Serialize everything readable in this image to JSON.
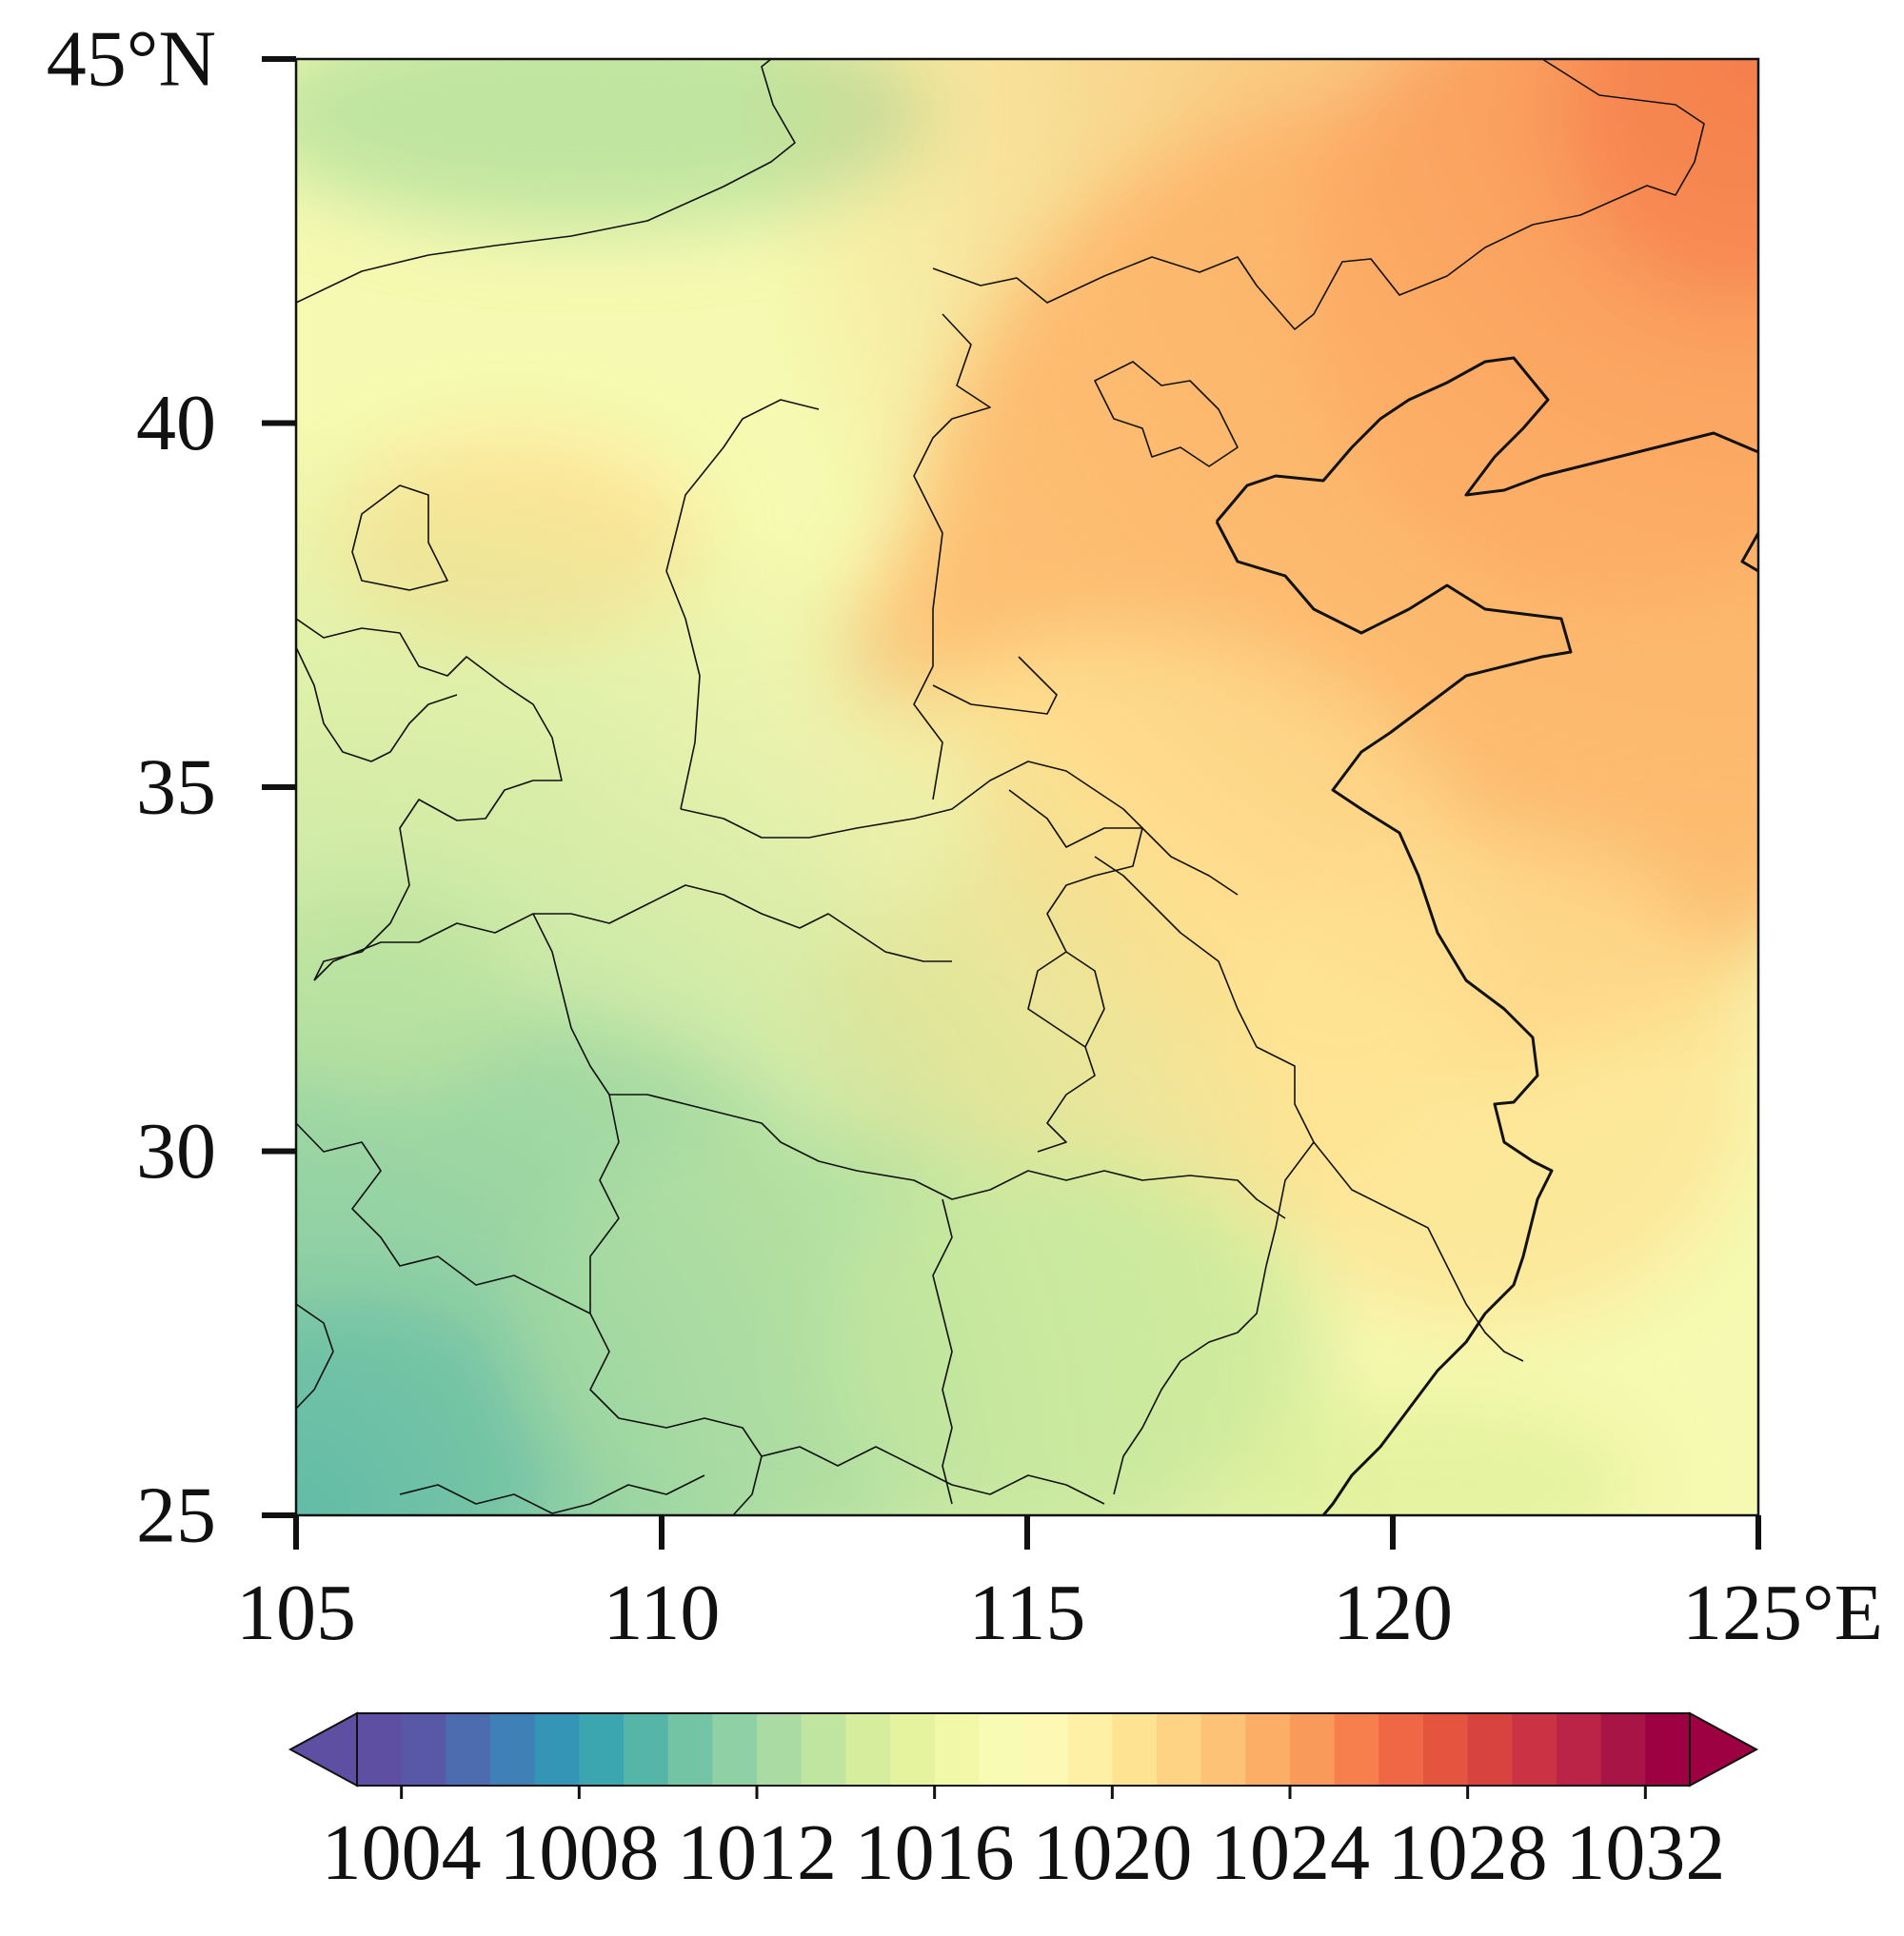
{
  "map": {
    "y_axis": {
      "unit_label": "45°N",
      "ticks": [
        {
          "value": 45,
          "label": "45°N"
        },
        {
          "value": 40,
          "label": "40"
        },
        {
          "value": 35,
          "label": "35"
        },
        {
          "value": 30,
          "label": "30"
        },
        {
          "value": 25,
          "label": "25"
        }
      ]
    },
    "x_axis": {
      "ticks": [
        {
          "value": 105,
          "label": "105"
        },
        {
          "value": 110,
          "label": "110"
        },
        {
          "value": 115,
          "label": "115"
        },
        {
          "value": 120,
          "label": "120"
        },
        {
          "value": 125,
          "label": "125°E"
        }
      ]
    },
    "lon_range": [
      105,
      125
    ],
    "lat_range": [
      25,
      45
    ],
    "field_description_values": {
      "min_shown": 1008,
      "max_shown": 1026
    }
  },
  "colorbar": {
    "ticks": [
      "1004",
      "1008",
      "1012",
      "1016",
      "1020",
      "1024",
      "1028",
      "1032"
    ],
    "min": 1003,
    "max": 1033,
    "step": 1,
    "extend": "both",
    "colors": [
      "#5e4fa2",
      "#5958a8",
      "#4d6cb0",
      "#3f80b7",
      "#3495b7",
      "#3ba5b0",
      "#55b6a8",
      "#73c3a5",
      "#8fd0a4",
      "#a9dba2",
      "#c0e5a0",
      "#d5ed9c",
      "#e5f39f",
      "#f1f8a8",
      "#f8fbb3",
      "#fdf8b3",
      "#fef0a4",
      "#fee393",
      "#fed484",
      "#fdc275",
      "#fcae66",
      "#f9995a",
      "#f67f4d",
      "#ef6744",
      "#e4543f",
      "#d9433f",
      "#cb3344",
      "#bb2446",
      "#a91447",
      "#9e0142"
    ]
  }
}
